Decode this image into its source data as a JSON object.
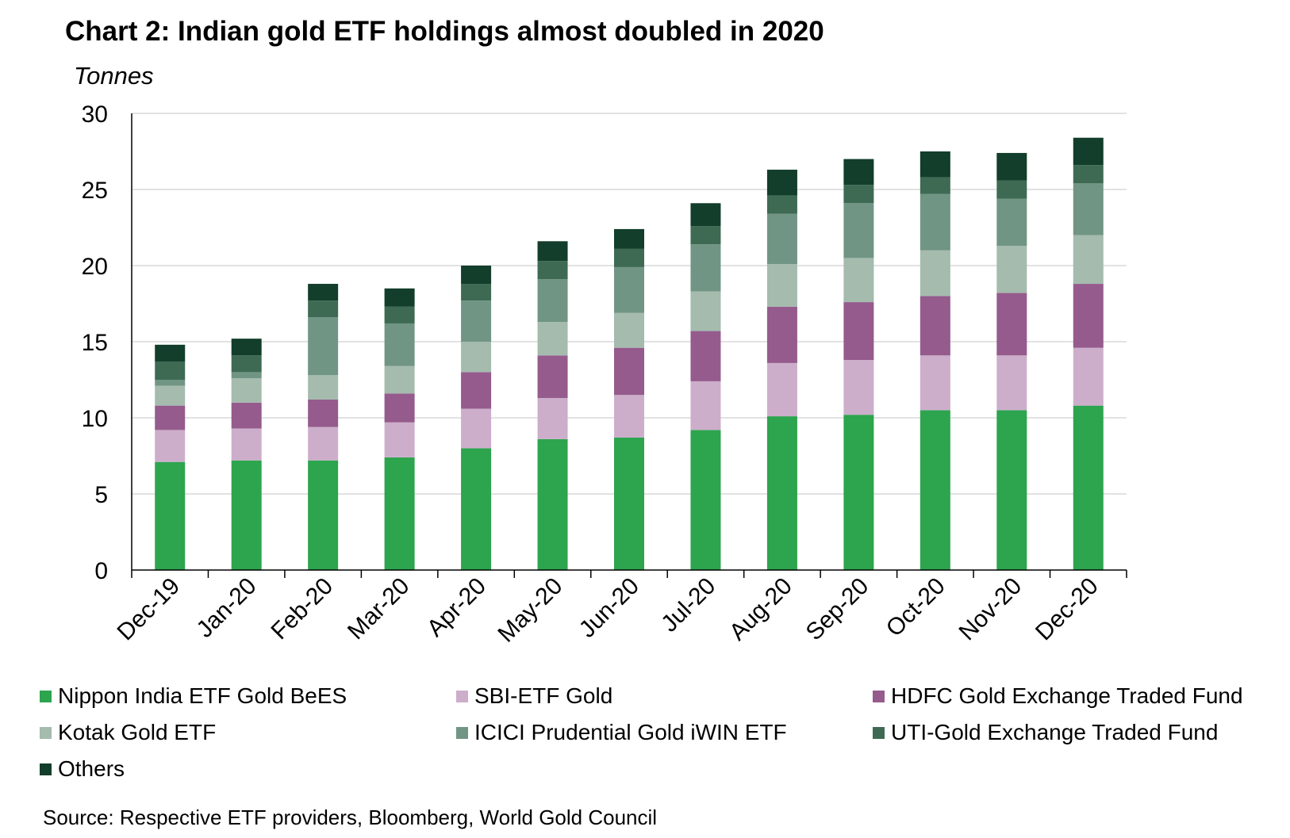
{
  "chart_data": {
    "type": "bar",
    "stacked": true,
    "title": "Chart 2: Indian gold ETF holdings almost doubled in 2020",
    "ylabel": "Tonnes",
    "xlabel": "",
    "ylim": [
      0,
      30
    ],
    "yticks": [
      0,
      5,
      10,
      15,
      20,
      25,
      30
    ],
    "grid": true,
    "legend_position": "bottom",
    "categories": [
      "Dec-19",
      "Jan-20",
      "Feb-20",
      "Mar-20",
      "Apr-20",
      "May-20",
      "Jun-20",
      "Jul-20",
      "Aug-20",
      "Sep-20",
      "Oct-20",
      "Nov-20",
      "Dec-20"
    ],
    "series": [
      {
        "name": "Nippon India ETF Gold BeES",
        "color": "#2da44e",
        "values": [
          7.1,
          7.2,
          7.2,
          7.4,
          8.0,
          8.6,
          8.7,
          9.2,
          10.1,
          10.2,
          10.5,
          10.5,
          10.8
        ]
      },
      {
        "name": "SBI-ETF Gold",
        "color": "#ccaecb",
        "values": [
          2.1,
          2.1,
          2.2,
          2.3,
          2.6,
          2.7,
          2.8,
          3.2,
          3.5,
          3.6,
          3.6,
          3.6,
          3.8
        ]
      },
      {
        "name": "HDFC Gold Exchange Traded Fund",
        "color": "#955b8d",
        "values": [
          1.6,
          1.7,
          1.8,
          1.9,
          2.4,
          2.8,
          3.1,
          3.3,
          3.7,
          3.8,
          3.9,
          4.1,
          4.2
        ]
      },
      {
        "name": "Kotak Gold ETF",
        "color": "#a4bbae",
        "values": [
          1.3,
          1.6,
          1.6,
          1.8,
          2.0,
          2.2,
          2.3,
          2.6,
          2.8,
          2.9,
          3.0,
          3.1,
          3.2
        ]
      },
      {
        "name": "ICICI Prudential Gold iWIN ETF",
        "color": "#719584",
        "values": [
          0.4,
          0.4,
          3.8,
          2.8,
          2.7,
          2.8,
          3.0,
          3.1,
          3.3,
          3.6,
          3.7,
          3.1,
          3.4
        ]
      },
      {
        "name": "UTI-Gold Exchange Traded Fund",
        "color": "#3e6a54",
        "values": [
          1.2,
          1.1,
          1.1,
          1.1,
          1.1,
          1.2,
          1.2,
          1.2,
          1.2,
          1.2,
          1.1,
          1.2,
          1.2
        ]
      },
      {
        "name": "Others",
        "color": "#123e2b",
        "values": [
          1.1,
          1.1,
          1.1,
          1.2,
          1.2,
          1.3,
          1.3,
          1.5,
          1.7,
          1.7,
          1.7,
          1.8,
          1.8
        ]
      }
    ]
  },
  "source": "Source: Respective ETF providers, Bloomberg, World Gold Council"
}
